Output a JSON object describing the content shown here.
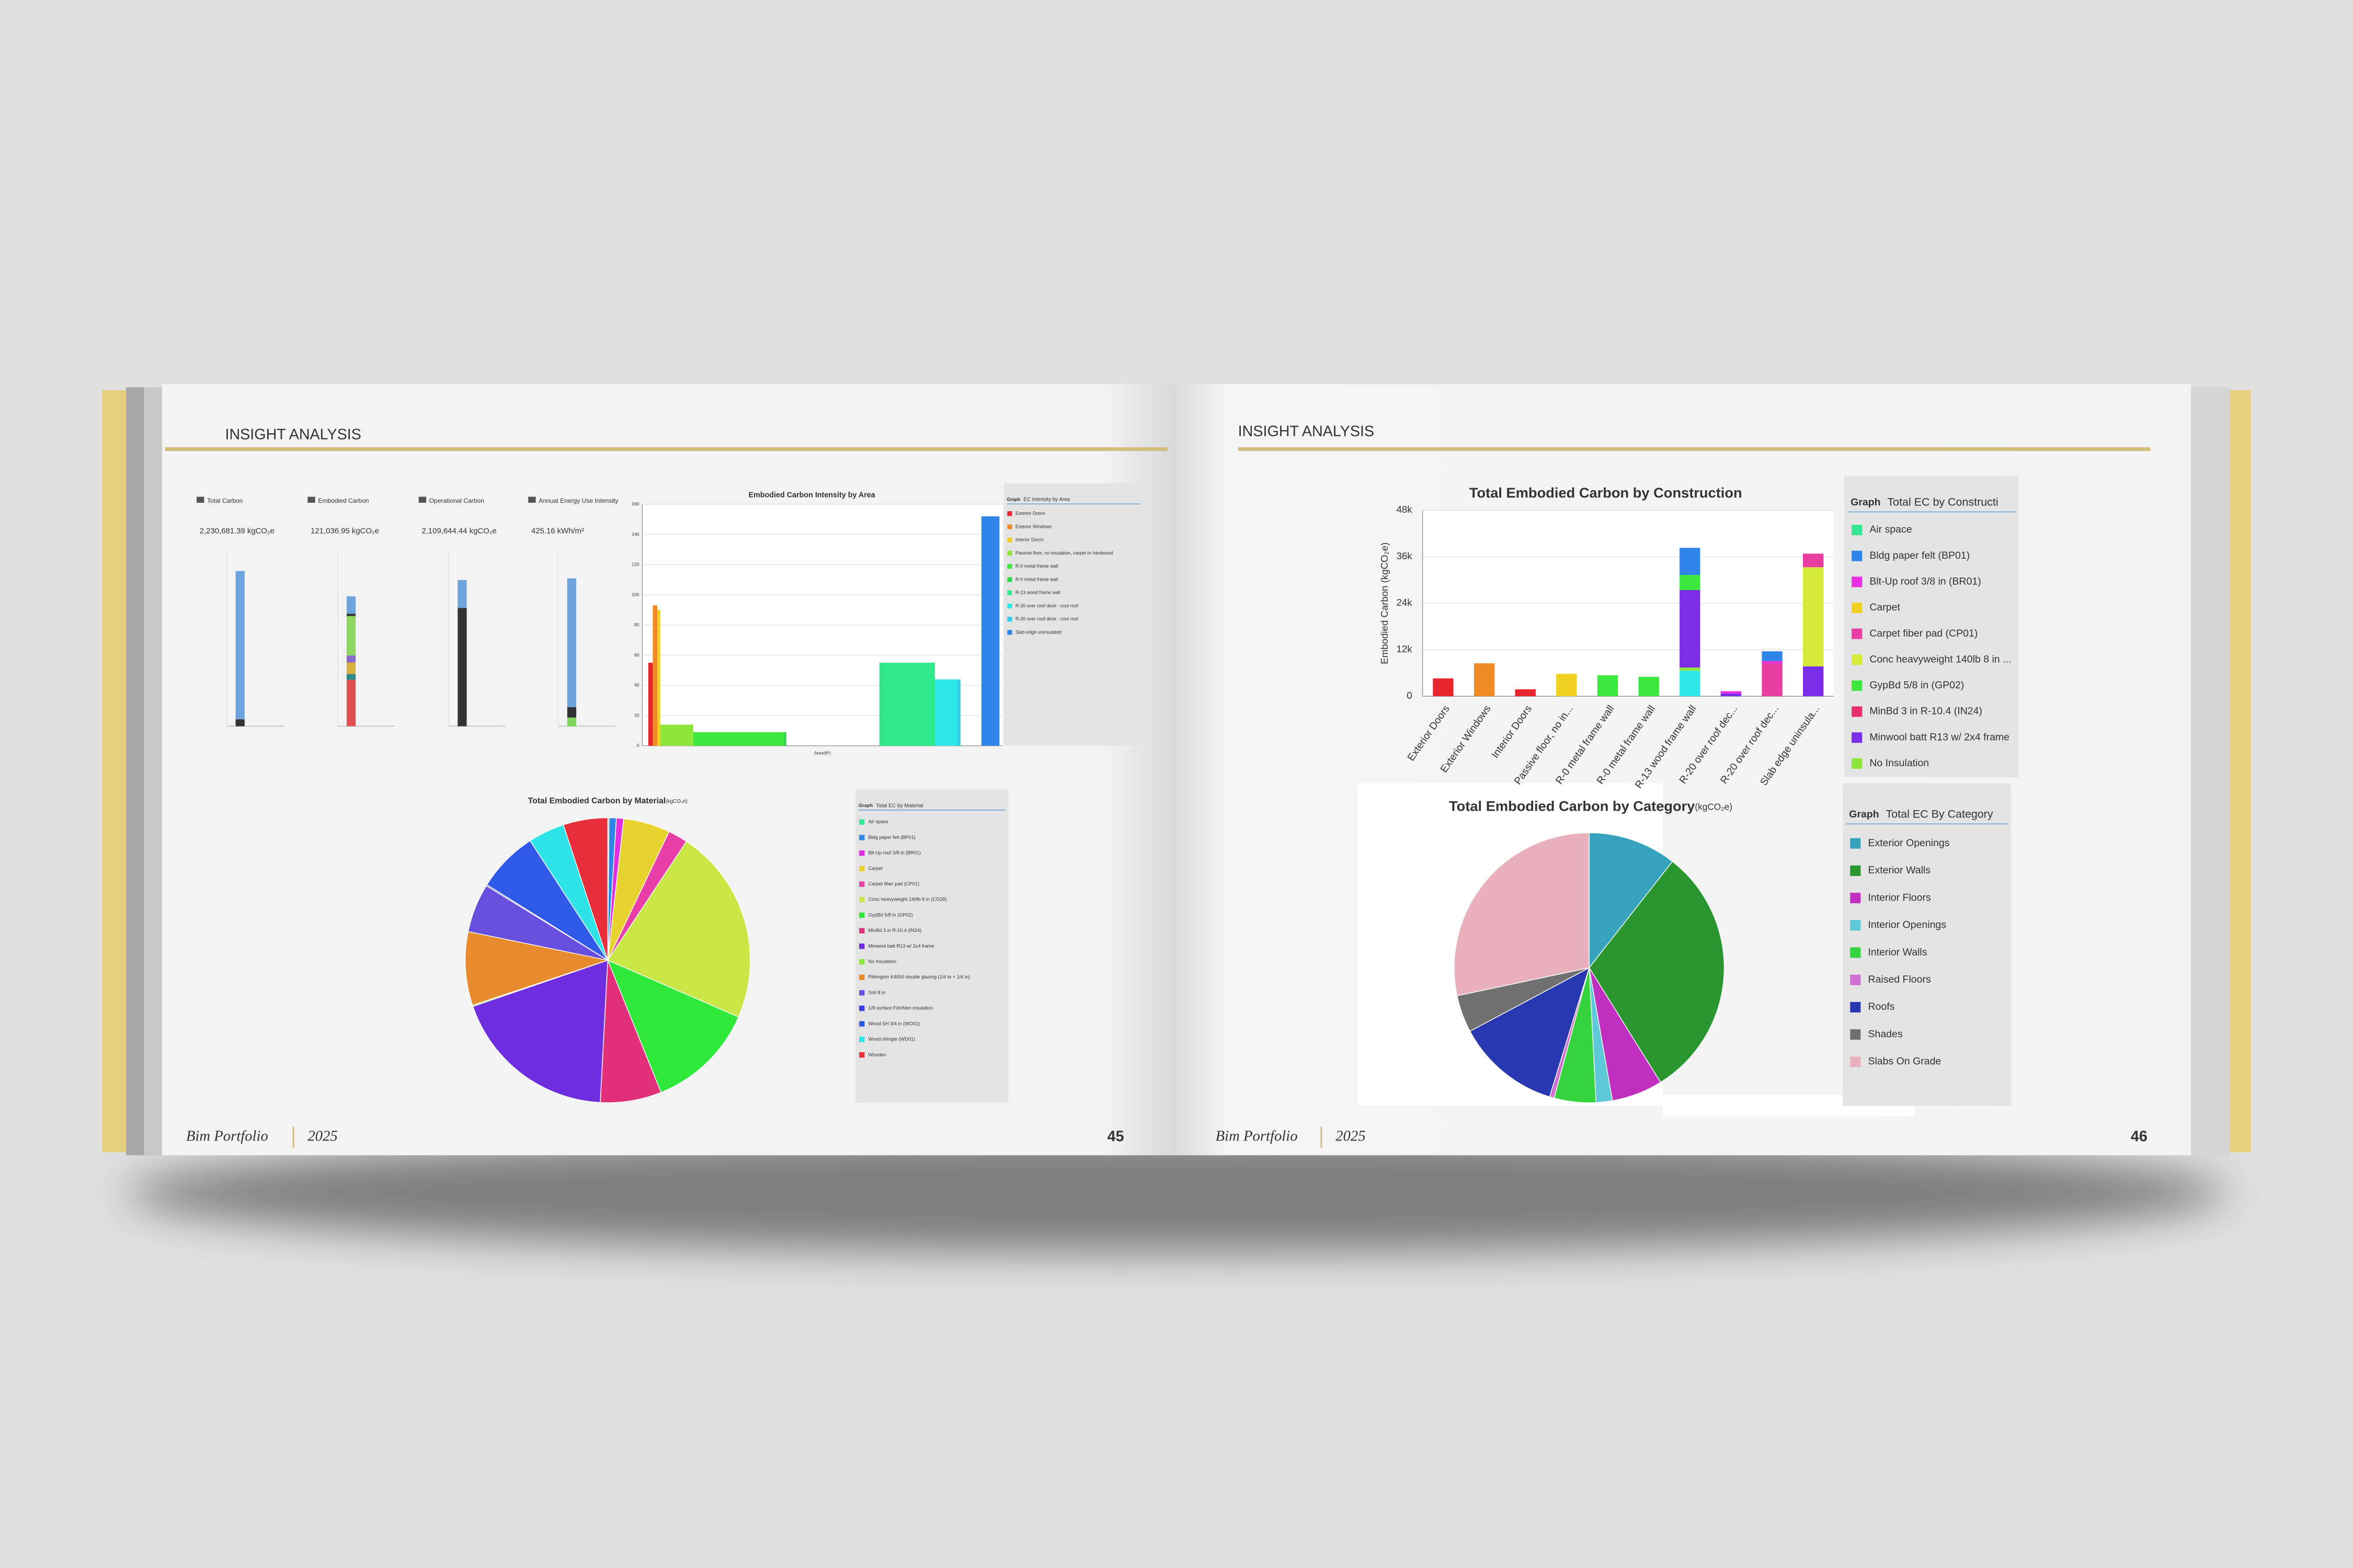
{
  "pages": [
    {
      "header": "INSIGHT ANALYSIS",
      "footer_title": "Bim Portfolio",
      "footer_year": "2025",
      "page_number": "45"
    },
    {
      "header": "INSIGHT ANALYSIS",
      "footer_title": "Bim Portfolio",
      "footer_year": "2025",
      "page_number": "46"
    }
  ],
  "kpis": [
    {
      "title": "Total Carbon",
      "value": "2,230,681.39 kgCO₂e",
      "chart": {
        "type": "bar",
        "ylim": [
          0,
          2500000
        ],
        "segments": [
          {
            "color": "#333333",
            "value": 100000
          },
          {
            "color": "#6fa3db",
            "value": 2130000
          }
        ]
      }
    },
    {
      "title": "Embodied Carbon",
      "value": "121,036.95 kgCO₂e",
      "chart": {
        "type": "bar",
        "ylim": [
          0,
          150000
        ],
        "segments": [
          {
            "color": "#e05050",
            "value": 40000
          },
          {
            "color": "#2f8a8a",
            "value": 5000
          },
          {
            "color": "#d8b040",
            "value": 10000
          },
          {
            "color": "#8a6ad0",
            "value": 6000
          },
          {
            "color": "#8ed860",
            "value": 34000
          },
          {
            "color": "#333333",
            "value": 2000
          },
          {
            "color": "#6fa3db",
            "value": 15000
          }
        ]
      }
    },
    {
      "title": "Operational Carbon",
      "value": "2,109,644.44 kgCO₂e",
      "chart": {
        "type": "bar",
        "ylim": [
          0,
          2500000
        ],
        "segments": [
          {
            "color": "#333333",
            "value": 1700000
          },
          {
            "color": "#6fa3db",
            "value": 400000
          }
        ]
      }
    },
    {
      "title": "Annual Energy Use Intensity",
      "value": "425.16 kWh/m²",
      "chart": {
        "type": "bar",
        "ylim": [
          0,
          500
        ],
        "segments": [
          {
            "color": "#7ed860",
            "value": 25
          },
          {
            "color": "#333333",
            "value": 30
          },
          {
            "color": "#6fa3db",
            "value": 370
          }
        ]
      }
    }
  ],
  "chart_data": [
    {
      "type": "bar",
      "title": "Embodied Carbon Intensity by Area",
      "xlabel": "Area(ft²)",
      "legend_label": "Graph",
      "legend_title": "EC Intensity by Area",
      "xlim": [
        0,
        1200
      ],
      "ylim": [
        0,
        160
      ],
      "yticks": [
        0,
        20,
        40,
        60,
        80,
        100,
        120,
        140,
        160
      ],
      "grid": true,
      "series": [
        {
          "name": "Exterior Doors",
          "color": "#e8262e",
          "xrange": [
            20,
            35
          ],
          "value": 55
        },
        {
          "name": "Exterior Windows",
          "color": "#f08a24",
          "xrange": [
            35,
            50
          ],
          "value": 93
        },
        {
          "name": "Interior Doors",
          "color": "#f0d020",
          "xrange": [
            50,
            60
          ],
          "value": 90
        },
        {
          "name": "Passive floor, no insulation, carpet or hardwood",
          "color": "#8ee63a",
          "xrange": [
            60,
            170
          ],
          "value": 14
        },
        {
          "name": "R-0 metal frame wall",
          "color": "#3be83b",
          "xrange": [
            170,
            470
          ],
          "value": 9
        },
        {
          "name": "R-0 metal frame wall",
          "color": "#2ed84a",
          "xrange": [
            470,
            480
          ],
          "value": 9
        },
        {
          "name": "R-13 wood frame wall",
          "color": "#2ee88a",
          "xrange": [
            790,
            975
          ],
          "value": 55
        },
        {
          "name": "R-20 over roof deck - cool roof",
          "color": "#2ee8e8",
          "xrange": [
            975,
            1050
          ],
          "value": 44
        },
        {
          "name": "R-20 over roof deck - cool roof",
          "color": "#2ed0e8",
          "xrange": [
            1050,
            1060
          ],
          "value": 44
        },
        {
          "name": "Slab edge uninsulated",
          "color": "#2f86e8",
          "xrange": [
            1130,
            1190
          ],
          "value": 152
        }
      ]
    },
    {
      "type": "pie",
      "title": "Total Embodied Carbon by Material",
      "subtitle": "(kgCO₂e)",
      "legend_label": "Graph",
      "legend_title": "Total EC by Material",
      "categories": [
        "Air space",
        "Bldg paper felt (BP01)",
        "Blt-Up roof 3/8 in (BR01)",
        "Carpet",
        "Carpet fiber pad (CP01)",
        "Conc heavyweight 140lb 8 in (CO28)",
        "GypBd 5/8 in (GP02)",
        "MinBd 3 in R-10.4 (IN24)",
        "Minwool batt R13 w/ 2x4 frame",
        "No Insulation",
        "Pilkington K4650 double glazing (1/4 in + 1/4 in)",
        "Soil 8 in",
        "1/8 surface FilmNon insulation",
        "Wood SH 3/4 in (WO01)",
        "Wood shingle (WD01)",
        "Wooden"
      ],
      "values": [
        170,
        1000,
        1000,
        6400,
        2700,
        26900,
        15000,
        8400,
        22900,
        170,
        10100,
        6700,
        170,
        8400,
        5000,
        6100
      ],
      "colors": [
        "#35e89a",
        "#2f86e8",
        "#e02ee0",
        "#e8d22e",
        "#e83ea8",
        "#c8e645",
        "#2ee83a",
        "#e0307a",
        "#6f2ee0",
        "#8ee63a",
        "#e88a2e",
        "#6a4ee0",
        "#3a3ae8",
        "#2f5ae8",
        "#2ee4e8",
        "#e82e3a"
      ]
    },
    {
      "type": "bar",
      "title": "Total Embodied Carbon by Construction",
      "ylabel": "Embodied Carbon (kgCO₂e)",
      "legend_label": "Graph",
      "legend_title": "Total EC by Constructi",
      "categories": [
        "Exterior Doors",
        "Exterior Windows",
        "Interior Doors",
        "Passive floor, no in...",
        "R-0 metal frame wall",
        "R-0 metal frame wall",
        "R-13 wood frame wall",
        "R-20 over roof dec...",
        "R-20 over roof dec...",
        "Slab edge uninsula..."
      ],
      "ylim": [
        0,
        48000
      ],
      "yticks": [
        0,
        {
          "value": 12000,
          "label": "12k"
        },
        {
          "value": 24000,
          "label": "24k"
        },
        {
          "value": 36000,
          "label": "36k"
        },
        {
          "value": 48000,
          "label": "48k"
        }
      ],
      "grid": true,
      "series": [
        {
          "name": "Air space",
          "color": "#33e890",
          "values": [
            0,
            0,
            0,
            0,
            0,
            0,
            0,
            0,
            0,
            0
          ]
        },
        {
          "name": "Bldg paper felt (BP01)",
          "color": "#2f86e8",
          "values": [
            0,
            0,
            0,
            0,
            0,
            0,
            7000,
            0,
            2500,
            0
          ]
        },
        {
          "name": "Blt-Up roof 3/8 in (BR01)",
          "color": "#e82ee0",
          "values": [
            0,
            0,
            0,
            0,
            0,
            0,
            0,
            600,
            600,
            0
          ]
        },
        {
          "name": "Carpet",
          "color": "#f0d020",
          "values": [
            0,
            0,
            0,
            5800,
            0,
            0,
            0,
            0,
            0,
            0
          ]
        },
        {
          "name": "Carpet fiber pad (CP01)",
          "color": "#e83ea0",
          "values": [
            0,
            0,
            0,
            0,
            0,
            0,
            0,
            0,
            8500,
            3500
          ]
        },
        {
          "name": "Conc heavyweight 140lb 8 in ...",
          "color": "#d6ea3a",
          "values": [
            0,
            0,
            0,
            0,
            0,
            0,
            0,
            0,
            0,
            25600
          ]
        },
        {
          "name": "GypBd 5/8 in (GP02)",
          "color": "#3be83b",
          "values": [
            0,
            0,
            0,
            0,
            5400,
            5000,
            3900,
            0,
            0,
            0
          ]
        },
        {
          "name": "MinBd 3 in R-10.4 (IN24)",
          "color": "#e8306a",
          "values": [
            0,
            0,
            0,
            0,
            0,
            0,
            0,
            0,
            0,
            0
          ]
        },
        {
          "name": "Minwool batt R13 w/ 2x4 frame",
          "color": "#7a2ee8",
          "values": [
            0,
            0,
            0,
            0,
            0,
            0,
            20000,
            700,
            0,
            7700
          ]
        },
        {
          "name": "No Insulation",
          "color": "#8ee63a",
          "values": [
            0,
            0,
            0,
            0,
            0,
            0,
            800,
            0,
            0,
            0
          ]
        },
        {
          "color": "#e8262e",
          "values": [
            4600,
            0,
            1800,
            0,
            0,
            0,
            0,
            0,
            0,
            0
          ]
        },
        {
          "color": "#f08a24",
          "values": [
            0,
            8500,
            0,
            0,
            0,
            0,
            0,
            0,
            0,
            0
          ]
        },
        {
          "color": "#2ee8e8",
          "values": [
            0,
            0,
            0,
            0,
            0,
            0,
            6600,
            0,
            0,
            0
          ]
        }
      ]
    },
    {
      "type": "pie",
      "title": "Total Embodied Carbon by Category",
      "subtitle": "(kgCO₂e)",
      "legend_label": "Graph",
      "legend_title": "Total EC By Category",
      "categories": [
        "Exterior Openings",
        "Exterior Walls",
        "Interior Floors",
        "Interior Openings",
        "Interior Walls",
        "Raised Floors",
        "Roofs",
        "Shades",
        "Slabs On Grade"
      ],
      "values": [
        12800,
        37000,
        7400,
        2350,
        6050,
        670,
        15100,
        5400,
        34300
      ],
      "colors": [
        "#35a3bc",
        "#2a9630",
        "#c030c0",
        "#5cc8d8",
        "#33d43d",
        "#d070d0",
        "#2838b0",
        "#707070",
        "#e8b0bc"
      ]
    }
  ]
}
